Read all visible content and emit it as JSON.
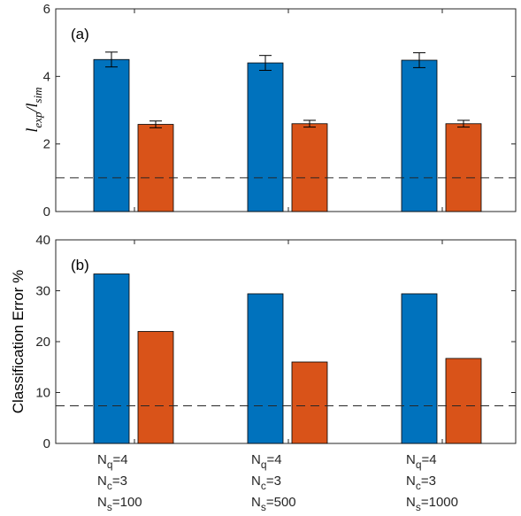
{
  "chart_data": [
    {
      "type": "bar",
      "panel_label": "(a)",
      "ylabel": "l_exp/l_sim",
      "ylabel_parts": {
        "base": "l",
        "sub1": "exp",
        "sep": "/",
        "base2": "l",
        "sub2": "sim"
      },
      "ylim": [
        0,
        6
      ],
      "yticks": [
        0,
        2,
        4,
        6
      ],
      "reference_line": 1,
      "reference_style": "dashed",
      "series": [
        {
          "name": "",
          "color": "#0072BD",
          "values": [
            4.5,
            4.4,
            4.48
          ],
          "errors": [
            0.22,
            0.22,
            0.22
          ]
        },
        {
          "name": "",
          "color": "#D95319",
          "values": [
            2.58,
            2.6,
            2.6
          ],
          "errors": [
            0.1,
            0.1,
            0.1
          ]
        }
      ],
      "grid": false
    },
    {
      "type": "bar",
      "panel_label": "(b)",
      "ylabel": "Classification Error %",
      "ylim": [
        0,
        40
      ],
      "yticks": [
        0,
        10,
        20,
        30,
        40
      ],
      "reference_line": 7.4,
      "reference_style": "dashed",
      "series": [
        {
          "name": "",
          "color": "#0072BD",
          "values": [
            33.3,
            29.4,
            29.4
          ]
        },
        {
          "name": "",
          "color": "#D95319",
          "values": [
            22.0,
            16.0,
            16.7
          ]
        }
      ],
      "grid": false
    }
  ],
  "categories": [
    {
      "q": {
        "base": "N",
        "sub": "q",
        "val": "=4"
      },
      "c": {
        "base": "N",
        "sub": "c",
        "val": "=3"
      },
      "s": {
        "base": "N",
        "sub": "s",
        "val": "=100"
      }
    },
    {
      "q": {
        "base": "N",
        "sub": "q",
        "val": "=4"
      },
      "c": {
        "base": "N",
        "sub": "c",
        "val": "=3"
      },
      "s": {
        "base": "N",
        "sub": "s",
        "val": "=500"
      }
    },
    {
      "q": {
        "base": "N",
        "sub": "q",
        "val": "=4"
      },
      "c": {
        "base": "N",
        "sub": "c",
        "val": "=3"
      },
      "s": {
        "base": "N",
        "sub": "s",
        "val": "=1000"
      }
    }
  ]
}
